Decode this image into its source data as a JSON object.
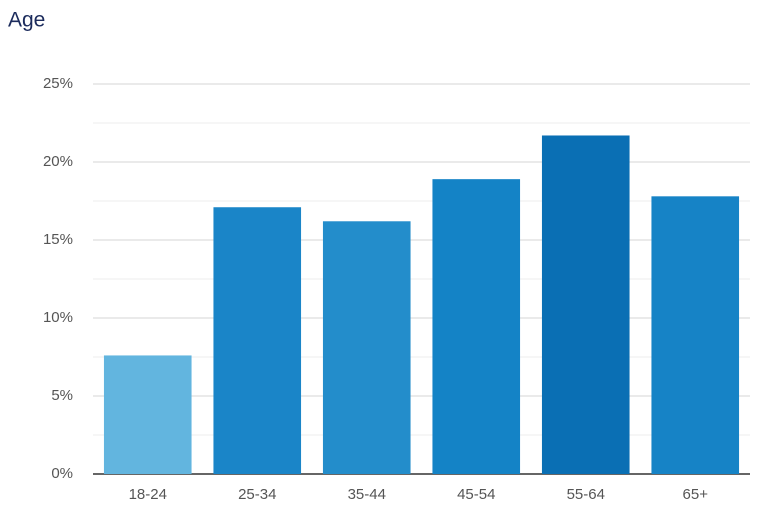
{
  "chart_data": {
    "type": "bar",
    "title": "Age",
    "categories": [
      "18-24",
      "25-34",
      "35-44",
      "45-54",
      "55-64",
      "65+"
    ],
    "values": [
      7.6,
      17.1,
      16.2,
      18.9,
      21.7,
      17.8
    ],
    "colors": [
      "#62b5df",
      "#1a85c8",
      "#238dcb",
      "#1483c6",
      "#0a6fb4",
      "#1683c6"
    ],
    "ylim": [
      0,
      25
    ],
    "yticks": [
      {
        "value": 0,
        "label": "0%"
      },
      {
        "value": 5,
        "label": "5%"
      },
      {
        "value": 10,
        "label": "10%"
      },
      {
        "value": 15,
        "label": "15%"
      },
      {
        "value": 20,
        "label": "20%"
      },
      {
        "value": 25,
        "label": "25%"
      }
    ],
    "minor_yticks": [
      2.5,
      7.5,
      12.5,
      17.5,
      22.5
    ],
    "grid": true
  }
}
